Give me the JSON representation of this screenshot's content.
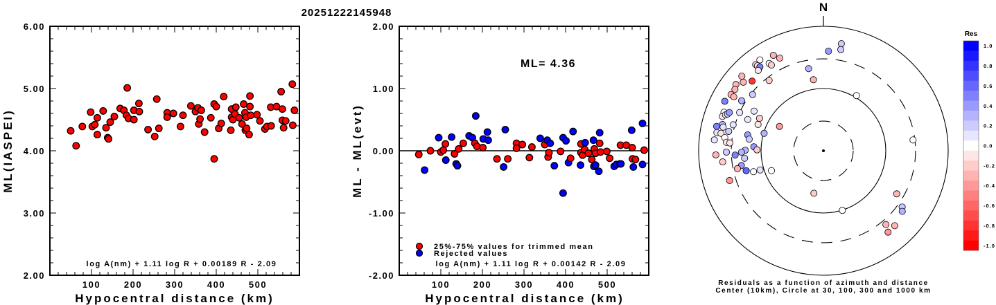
{
  "title": "20251222145948",
  "chart_data": [
    {
      "type": "scatter",
      "name": "magnitude-vs-distance",
      "xlabel": "Hypocentral distance (km)",
      "ylabel": "ML(IASPEI)",
      "xlim": [
        0,
        600
      ],
      "ylim": [
        2,
        6
      ],
      "xticks": [
        100,
        200,
        300,
        400,
        500
      ],
      "yticks": [
        "2.00",
        "3.00",
        "4.00",
        "5.00",
        "6.00"
      ],
      "formula": "log A(nm) + 1.11 log R + 0.00189 R - 2.09",
      "marker_color": "#ff0000",
      "points": [
        [
          50,
          4.32
        ],
        [
          63,
          4.08
        ],
        [
          78,
          4.39
        ],
        [
          98,
          4.62
        ],
        [
          102,
          4.39
        ],
        [
          108,
          4.42
        ],
        [
          114,
          4.53
        ],
        [
          114,
          4.26
        ],
        [
          128,
          4.64
        ],
        [
          135,
          4.37
        ],
        [
          139,
          4.21
        ],
        [
          141,
          4.19
        ],
        [
          145,
          4.46
        ],
        [
          155,
          4.55
        ],
        [
          169,
          4.68
        ],
        [
          178,
          4.65
        ],
        [
          184,
          4.57
        ],
        [
          186,
          5.01
        ],
        [
          189,
          4.52
        ],
        [
          202,
          4.5
        ],
        [
          202,
          4.65
        ],
        [
          214,
          4.76
        ],
        [
          215,
          4.63
        ],
        [
          236,
          4.34
        ],
        [
          252,
          4.23
        ],
        [
          257,
          4.83
        ],
        [
          262,
          4.36
        ],
        [
          282,
          4.61
        ],
        [
          282,
          4.54
        ],
        [
          297,
          4.6
        ],
        [
          314,
          4.39
        ],
        [
          320,
          4.57
        ],
        [
          339,
          4.72
        ],
        [
          350,
          4.63
        ],
        [
          356,
          4.69
        ],
        [
          358,
          4.43
        ],
        [
          361,
          4.51
        ],
        [
          364,
          4.65
        ],
        [
          372,
          4.3
        ],
        [
          387,
          4.53
        ],
        [
          395,
          4.75
        ],
        [
          395,
          3.87
        ],
        [
          400,
          4.71
        ],
        [
          406,
          4.36
        ],
        [
          412,
          4.44
        ],
        [
          418,
          4.87
        ],
        [
          435,
          4.33
        ],
        [
          437,
          4.67
        ],
        [
          437,
          4.54
        ],
        [
          440,
          4.5
        ],
        [
          445,
          4.59
        ],
        [
          447,
          4.7
        ],
        [
          455,
          4.53
        ],
        [
          462,
          4.43
        ],
        [
          466,
          4.75
        ],
        [
          469,
          4.61
        ],
        [
          470,
          4.33
        ],
        [
          472,
          4.54
        ],
        [
          473,
          4.36
        ],
        [
          479,
          4.26
        ],
        [
          481,
          4.88
        ],
        [
          481,
          4.71
        ],
        [
          483,
          4.57
        ],
        [
          498,
          4.58
        ],
        [
          505,
          4.48
        ],
        [
          517,
          4.35
        ],
        [
          522,
          4.39
        ],
        [
          531,
          4.7
        ],
        [
          532,
          4.4
        ],
        [
          545,
          4.71
        ],
        [
          556,
          4.95
        ],
        [
          559,
          4.67
        ],
        [
          559,
          4.49
        ],
        [
          562,
          4.37
        ],
        [
          567,
          4.48
        ],
        [
          583,
          5.07
        ],
        [
          584,
          4.41
        ],
        [
          588,
          4.65
        ]
      ]
    },
    {
      "type": "scatter",
      "name": "residual-vs-distance",
      "xlabel": "Hypocentral distance (km)",
      "ylabel": "ML - ML(evt)",
      "xlim": [
        0,
        600
      ],
      "ylim": [
        -2,
        2
      ],
      "xticks": [
        100,
        200,
        300,
        400,
        500
      ],
      "yticks": [
        "-2.00",
        "-1.00",
        "0.00",
        "1.00",
        "2.00"
      ],
      "annotation": "ML= 4.36",
      "formula": "log A(nm) + 1.11 log R + 0.00142 R - 2.09",
      "legend": [
        {
          "label": "25%-75% values for trimmed mean",
          "color": "#ff0000",
          "key": "used"
        },
        {
          "label": "Rejected values",
          "color": "#0000ff",
          "key": "rejected"
        }
      ],
      "legend_position": "bottom-left",
      "points": [
        [
          47,
          -0.06,
          "used"
        ],
        [
          61,
          -0.31,
          "rejected"
        ],
        [
          75,
          0.0,
          "used"
        ],
        [
          95,
          0.21,
          "rejected"
        ],
        [
          100,
          -0.02,
          "used"
        ],
        [
          106,
          0.01,
          "used"
        ],
        [
          111,
          0.11,
          "used"
        ],
        [
          112,
          -0.15,
          "rejected"
        ],
        [
          126,
          0.22,
          "rejected"
        ],
        [
          133,
          -0.05,
          "used"
        ],
        [
          137,
          -0.21,
          "rejected"
        ],
        [
          140,
          -0.24,
          "rejected"
        ],
        [
          143,
          0.03,
          "used"
        ],
        [
          154,
          0.12,
          "used"
        ],
        [
          168,
          0.24,
          "rejected"
        ],
        [
          176,
          0.21,
          "rejected"
        ],
        [
          182,
          0.12,
          "used"
        ],
        [
          184,
          0.56,
          "rejected"
        ],
        [
          187,
          0.07,
          "used"
        ],
        [
          201,
          0.05,
          "used"
        ],
        [
          202,
          0.19,
          "rejected"
        ],
        [
          212,
          0.3,
          "rejected"
        ],
        [
          214,
          0.17,
          "rejected"
        ],
        [
          235,
          -0.13,
          "used"
        ],
        [
          251,
          -0.26,
          "rejected"
        ],
        [
          255,
          0.34,
          "rejected"
        ],
        [
          261,
          -0.13,
          "used"
        ],
        [
          282,
          0.12,
          "used"
        ],
        [
          282,
          0.04,
          "used"
        ],
        [
          296,
          0.1,
          "used"
        ],
        [
          313,
          -0.11,
          "used"
        ],
        [
          319,
          0.06,
          "used"
        ],
        [
          339,
          0.2,
          "rejected"
        ],
        [
          350,
          0.1,
          "used"
        ],
        [
          356,
          0.17,
          "rejected"
        ],
        [
          358,
          -0.1,
          "used"
        ],
        [
          360,
          -0.03,
          "used"
        ],
        [
          363,
          0.12,
          "rejected"
        ],
        [
          373,
          -0.24,
          "rejected"
        ],
        [
          388,
          -0.01,
          "used"
        ],
        [
          394,
          0.21,
          "rejected"
        ],
        [
          394,
          -0.68,
          "rejected"
        ],
        [
          401,
          0.16,
          "rejected"
        ],
        [
          407,
          -0.19,
          "rejected"
        ],
        [
          412,
          -0.12,
          "used"
        ],
        [
          418,
          0.31,
          "rejected"
        ],
        [
          436,
          -0.23,
          "rejected"
        ],
        [
          437,
          0.11,
          "used"
        ],
        [
          437,
          -0.03,
          "used"
        ],
        [
          441,
          -0.07,
          "used"
        ],
        [
          446,
          0.02,
          "used"
        ],
        [
          447,
          0.13,
          "rejected"
        ],
        [
          455,
          -0.04,
          "used"
        ],
        [
          463,
          -0.14,
          "used"
        ],
        [
          467,
          0.17,
          "rejected"
        ],
        [
          468,
          -0.25,
          "rejected"
        ],
        [
          469,
          0.03,
          "used"
        ],
        [
          472,
          -0.04,
          "used"
        ],
        [
          472,
          -0.23,
          "rejected"
        ],
        [
          480,
          -0.33,
          "rejected"
        ],
        [
          482,
          0.29,
          "rejected"
        ],
        [
          482,
          0.12,
          "used"
        ],
        [
          484,
          -0.02,
          "used"
        ],
        [
          499,
          -0.01,
          "used"
        ],
        [
          506,
          -0.12,
          "used"
        ],
        [
          517,
          -0.25,
          "rejected"
        ],
        [
          522,
          -0.22,
          "rejected"
        ],
        [
          531,
          -0.21,
          "rejected"
        ],
        [
          533,
          -0.21,
          "rejected"
        ],
        [
          532,
          0.09,
          "used"
        ],
        [
          546,
          0.09,
          "used"
        ],
        [
          559,
          0.33,
          "rejected"
        ],
        [
          560,
          0.05,
          "used"
        ],
        [
          561,
          -0.13,
          "used"
        ],
        [
          563,
          -0.26,
          "rejected"
        ],
        [
          568,
          -0.14,
          "used"
        ],
        [
          585,
          0.44,
          "rejected"
        ],
        [
          585,
          -0.22,
          "rejected"
        ],
        [
          589,
          0.01,
          "used"
        ]
      ]
    },
    {
      "type": "scatter",
      "name": "residual-azimuth-distance",
      "north_label": "N",
      "caption_line1": "Residuals as a function of azimuth and distance",
      "caption_line2": "Center (10km), Circle at 30, 100, 300 and 1000 km",
      "center_km": 10,
      "circles_km": [
        30,
        100,
        300,
        1000
      ],
      "colorbar_title": "Res",
      "colorbar_ticks": [
        "1.0",
        "0.8",
        "0.6",
        "0.4",
        "0.2",
        "0.0",
        "-0.2",
        "-0.4",
        "-0.6",
        "-0.8",
        "-1.0"
      ],
      "colorbar_range": [
        -1,
        1
      ],
      "points_az_dist_res": [
        [
          9.5,
          555,
          0.15
        ],
        [
          9.7,
          446,
          0.2
        ],
        [
          2.9,
          400,
          0.35
        ],
        [
          332.4,
          538,
          -0.3
        ],
        [
          334.8,
          442,
          -0.3
        ],
        [
          325.1,
          603,
          0.0
        ],
        [
          321.9,
          575,
          -0.2
        ],
        [
          322.3,
          532,
          -0.15
        ],
        [
          322.9,
          488,
          0.5
        ],
        [
          321,
          458,
          -0.1
        ],
        [
          328.2,
          448,
          0.0
        ],
        [
          328.8,
          407,
          -0.2
        ],
        [
          349.8,
          219,
          0.3
        ],
        [
          352,
          142,
          -0.35
        ],
        [
          312.5,
          595,
          -0.3
        ],
        [
          307.2,
          577,
          -0.35
        ],
        [
          310.6,
          492,
          -0.35
        ],
        [
          314.4,
          398,
          -0.8
        ],
        [
          322.4,
          267,
          -0.25
        ],
        [
          304.8,
          534,
          -0.3
        ],
        [
          301.4,
          543,
          -0.3
        ],
        [
          301.1,
          476,
          -0.3
        ],
        [
          308.5,
          283,
          0.15
        ],
        [
          301.5,
          345,
          0.3
        ],
        [
          296.7,
          589,
          0.5
        ],
        [
          30.9,
          108,
          0.0
        ],
        [
          291.2,
          512,
          0.0
        ],
        [
          288.8,
          513,
          -0.15
        ],
        [
          290.2,
          471,
          0.05
        ],
        [
          291,
          443,
          0.15
        ],
        [
          292.2,
          425,
          0.4
        ],
        [
          294.6,
          300,
          0.1
        ],
        [
          299.8,
          191,
          0.1
        ],
        [
          297,
          141,
          -0.25
        ],
        [
          292.5,
          206,
          0.05
        ],
        [
          292,
          135,
          -0.15
        ],
        [
          286.1,
          321,
          0.05
        ],
        [
          284.6,
          471,
          0.25
        ],
        [
          282.9,
          570,
          0.45
        ],
        [
          283.3,
          449,
          0.05
        ],
        [
          299.1,
          64,
          -0.4
        ],
        [
          286.4,
          98,
          0.3
        ],
        [
          281.6,
          355,
          0.15
        ],
        [
          279.7,
          540,
          0.1
        ],
        [
          279.7,
          463,
          -0.1
        ],
        [
          277.6,
          394,
          0.0
        ],
        [
          275.7,
          572,
          0.05
        ],
        [
          275,
          364,
          -0.15
        ],
        [
          274.8,
          320,
          -0.1
        ],
        [
          281.9,
          174,
          0.35
        ],
        [
          278.9,
          160,
          0.2
        ],
        [
          83.1,
          280,
          0.0
        ],
        [
          273.3,
          131,
          0.35
        ],
        [
          270.8,
          116,
          -0.25
        ],
        [
          270.4,
          179,
          0.25
        ],
        [
          269,
          206,
          0.25
        ],
        [
          269.2,
          359,
          0.2
        ],
        [
          267.8,
          532,
          -0.3
        ],
        [
          267.2,
          261,
          0.45
        ],
        [
          264.6,
          186,
          0.15
        ],
        [
          263.7,
          421,
          -0.25
        ],
        [
          259.8,
          217,
          0.35
        ],
        [
          258.2,
          256,
          -0.3
        ],
        [
          255.5,
          190,
          0.55
        ],
        [
          253.3,
          148,
          0.0
        ],
        [
          253.1,
          115,
          0.1
        ],
        [
          249,
          78,
          0.0
        ],
        [
          252.4,
          378,
          -0.4
        ],
        [
          192.6,
          50,
          -0.2
        ],
        [
          120.5,
          231,
          -0.35
        ],
        [
          162.4,
          101,
          0.0
        ],
        [
          125.6,
          357,
          0.2
        ],
        [
          127.6,
          394,
          0.25
        ],
        [
          139.8,
          356,
          -0.3
        ],
        [
          136.5,
          457,
          -0.35
        ],
        [
          141.6,
          466,
          -0.4
        ]
      ]
    }
  ]
}
